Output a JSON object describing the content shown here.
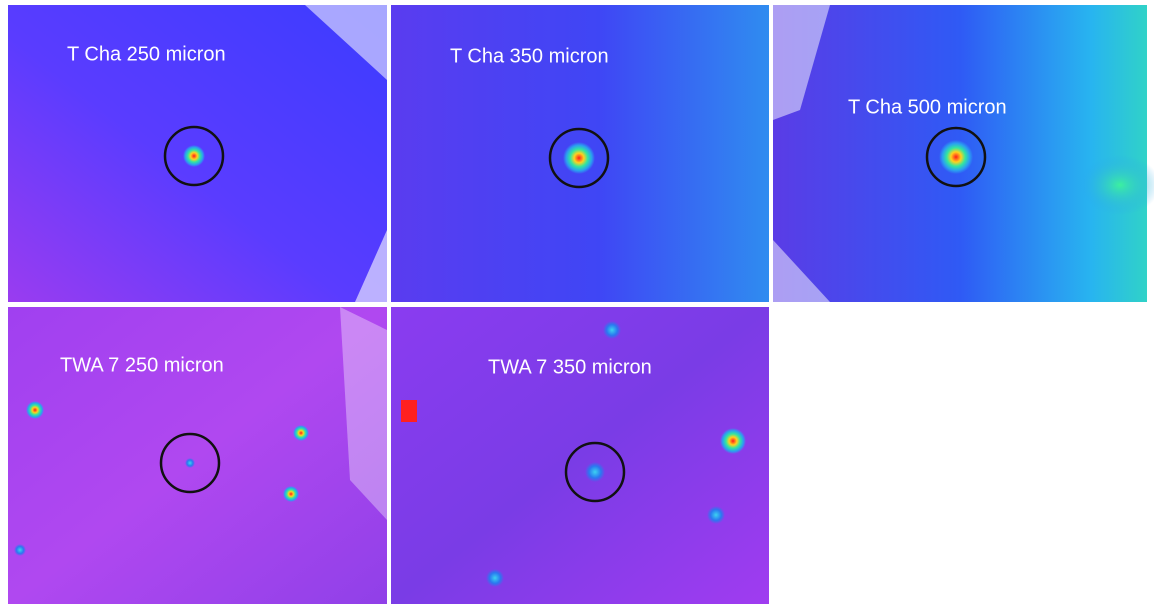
{
  "panels": [
    {
      "label": "T Cha 250 micron"
    },
    {
      "label": "T Cha 350 micron"
    },
    {
      "label": "T Cha 500 micron"
    },
    {
      "label": "TWA 7  250 micron"
    },
    {
      "label": "TWA 7  350 micron"
    }
  ]
}
